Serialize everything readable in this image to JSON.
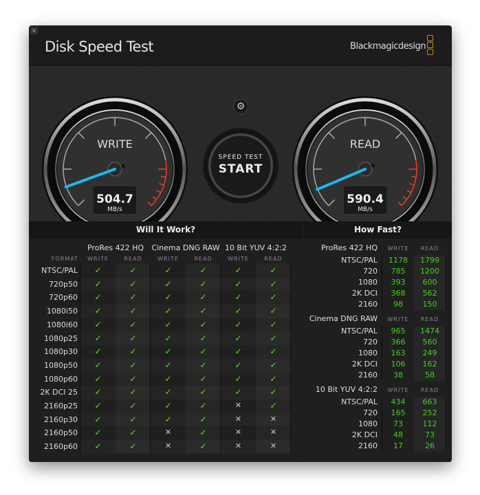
{
  "window": {
    "close_icon": "×",
    "title": "Disk Speed Test",
    "brand": "Blackmagicdesign"
  },
  "gauges": {
    "write": {
      "label": "WRITE",
      "value": "504.7",
      "unit": "MB/s"
    },
    "read": {
      "label": "READ",
      "value": "590.4",
      "unit": "MB/s"
    },
    "accent": "#1ab8f0",
    "redzone": "#e8412a"
  },
  "start_button": {
    "line1": "SPEED TEST",
    "line2": "START"
  },
  "settings_icon": "gear-icon",
  "will_it_work": {
    "title": "Will It Work?",
    "format_label": "FORMAT",
    "groups": [
      "ProRes 422 HQ",
      "Cinema DNG RAW",
      "10 Bit YUV 4:2:2"
    ],
    "sub": [
      "WRITE",
      "READ"
    ],
    "rows": [
      {
        "f": "NTSC/PAL",
        "v": [
          1,
          1,
          1,
          1,
          1,
          1
        ]
      },
      {
        "f": "720p50",
        "v": [
          1,
          1,
          1,
          1,
          1,
          1
        ]
      },
      {
        "f": "720p60",
        "v": [
          1,
          1,
          1,
          1,
          1,
          1
        ]
      },
      {
        "f": "1080i50",
        "v": [
          1,
          1,
          1,
          1,
          1,
          1
        ]
      },
      {
        "f": "1080i60",
        "v": [
          1,
          1,
          1,
          1,
          1,
          1
        ]
      },
      {
        "f": "1080p25",
        "v": [
          1,
          1,
          1,
          1,
          1,
          1
        ]
      },
      {
        "f": "1080p30",
        "v": [
          1,
          1,
          1,
          1,
          1,
          1
        ]
      },
      {
        "f": "1080p50",
        "v": [
          1,
          1,
          1,
          1,
          1,
          1
        ]
      },
      {
        "f": "1080p60",
        "v": [
          1,
          1,
          1,
          1,
          1,
          1
        ]
      },
      {
        "f": "2K DCI 25",
        "v": [
          1,
          1,
          1,
          1,
          1,
          1
        ]
      },
      {
        "f": "2160p25",
        "v": [
          1,
          1,
          1,
          1,
          0,
          1
        ]
      },
      {
        "f": "2160p30",
        "v": [
          1,
          1,
          1,
          1,
          0,
          0
        ]
      },
      {
        "f": "2160p50",
        "v": [
          1,
          1,
          0,
          1,
          0,
          0
        ]
      },
      {
        "f": "2160p60",
        "v": [
          1,
          1,
          0,
          1,
          0,
          0
        ]
      }
    ]
  },
  "how_fast": {
    "title": "How Fast?",
    "sub": [
      "WRITE",
      "READ"
    ],
    "sections": [
      {
        "name": "ProRes 422 HQ",
        "rows": [
          [
            "NTSC/PAL",
            "1178",
            "1799"
          ],
          [
            "720",
            "785",
            "1200"
          ],
          [
            "1080",
            "393",
            "600"
          ],
          [
            "2K DCI",
            "368",
            "562"
          ],
          [
            "2160",
            "98",
            "150"
          ]
        ]
      },
      {
        "name": "Cinema DNG RAW",
        "rows": [
          [
            "NTSC/PAL",
            "965",
            "1474"
          ],
          [
            "720",
            "366",
            "560"
          ],
          [
            "1080",
            "163",
            "249"
          ],
          [
            "2K DCI",
            "106",
            "162"
          ],
          [
            "2160",
            "38",
            "58"
          ]
        ]
      },
      {
        "name": "10 Bit YUV 4:2:2",
        "rows": [
          [
            "NTSC/PAL",
            "434",
            "663"
          ],
          [
            "720",
            "165",
            "252"
          ],
          [
            "1080",
            "73",
            "112"
          ],
          [
            "2K DCI",
            "48",
            "73"
          ],
          [
            "2160",
            "17",
            "26"
          ]
        ]
      }
    ]
  }
}
